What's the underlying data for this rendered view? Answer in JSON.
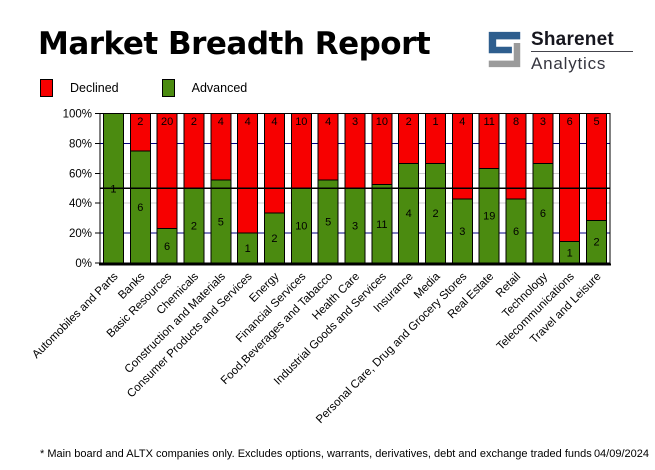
{
  "header": {
    "title": "Market Breadth Report",
    "logo": {
      "line1": "Sharenet",
      "line2": "Analytics",
      "blue": "#2e5e8e",
      "gray": "#9b9b9b"
    }
  },
  "legend": [
    {
      "label": "Declined",
      "color": "#f70000"
    },
    {
      "label": "Advanced",
      "color": "#4b8b10"
    }
  ],
  "footer": {
    "note": "* Main board and ALTX companies only. Excludes options, warrants, derivatives, debt and exchange traded funds",
    "date": "04/09/2024"
  },
  "chart_data": {
    "type": "bar",
    "stacked": true,
    "percent_stacked": true,
    "title": "Market Breadth Report",
    "categories": [
      "Automobiles and Parts",
      "Banks",
      "Basic Resources",
      "Chemicals",
      "Construction and Materials",
      "Consumer Products and Services",
      "Energy",
      "Financial Services",
      "Food,Beverages and Tabacco",
      "Health Care",
      "Industrial Goods and Services",
      "Insurance",
      "Media",
      "Personal Care, Drug and Grocery Stores",
      "Real Estate",
      "Retail",
      "Technology",
      "Telecommunications",
      "Travel and Leisure"
    ],
    "series": [
      {
        "name": "Declined",
        "color": "#f70000",
        "values": [
          0,
          2,
          20,
          2,
          4,
          4,
          4,
          10,
          4,
          3,
          10,
          2,
          1,
          4,
          11,
          8,
          3,
          6,
          5
        ]
      },
      {
        "name": "Advanced",
        "color": "#4b8b10",
        "values": [
          1,
          6,
          6,
          2,
          5,
          1,
          2,
          10,
          5,
          3,
          11,
          4,
          2,
          3,
          19,
          6,
          6,
          1,
          2
        ]
      }
    ],
    "ylabel": "",
    "xlabel": "",
    "ylim": [
      0,
      100
    ],
    "y_ticks": [
      0,
      20,
      40,
      60,
      80,
      100
    ],
    "y_tick_suffix": "%",
    "gridlines": {
      "navy": [
        20,
        80
      ],
      "gray": [
        40,
        60
      ],
      "black_mid": 50
    },
    "grid_colors": {
      "navy": "#000080",
      "gray": "#cccccc",
      "mid": "#000000"
    },
    "legend_position": "top-left",
    "bar_value_labels": "shown on segments"
  }
}
